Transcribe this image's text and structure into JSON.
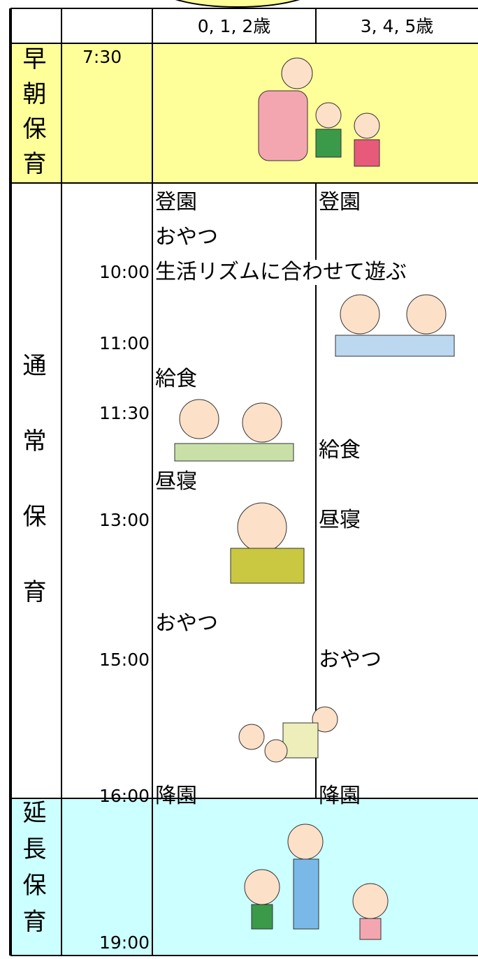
{
  "header": {
    "columns": [
      "0, 1, 2歳",
      "3, 4, 5歳"
    ]
  },
  "sections": [
    {
      "label": "早朝保育"
    },
    {
      "label": "通常保育"
    },
    {
      "label": "延長保育"
    }
  ],
  "times": [
    "7:30",
    "10:00",
    "11:00",
    "11:30",
    "13:00",
    "15:00",
    "16:00",
    "19:00"
  ],
  "activities_0_2": [
    "登園",
    "おやつ",
    "給食",
    "昼寝",
    "おやつ",
    "降園"
  ],
  "activities_3_5": [
    "登園",
    "給食",
    "昼寝",
    "おやつ",
    "降園"
  ],
  "shared_activity": "生活リズムに合わせて遊ぶ"
}
